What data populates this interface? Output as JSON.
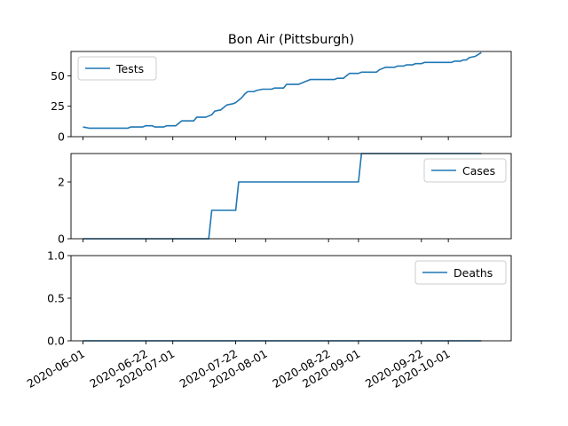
{
  "chart_data": {
    "type": "line",
    "title": "Bon Air (Pittsburgh)",
    "x_tick_labels": [
      "2020-06-01",
      "2020-06-22",
      "2020-07-01",
      "2020-07-22",
      "2020-08-01",
      "2020-08-22",
      "2020-09-01",
      "2020-09-22",
      "2020-10-01"
    ],
    "x_range": [
      "2020-05-28",
      "2020-10-22"
    ],
    "line_color": "#1f77b4",
    "panels": [
      {
        "legend": "Tests",
        "legend_position": "upper-left",
        "ylim": [
          0,
          70
        ],
        "y_ticks": [
          "0",
          "25",
          "50"
        ],
        "y_tick_values": [
          0,
          25,
          50
        ],
        "series": [
          [
            "2020-06-01",
            8
          ],
          [
            "2020-06-03",
            7
          ],
          [
            "2020-06-16",
            7
          ],
          [
            "2020-06-17",
            8
          ],
          [
            "2020-06-21",
            8
          ],
          [
            "2020-06-22",
            9
          ],
          [
            "2020-06-24",
            9
          ],
          [
            "2020-06-25",
            8
          ],
          [
            "2020-06-28",
            8
          ],
          [
            "2020-06-29",
            9
          ],
          [
            "2020-07-02",
            9
          ],
          [
            "2020-07-03",
            11
          ],
          [
            "2020-07-04",
            13
          ],
          [
            "2020-07-08",
            13
          ],
          [
            "2020-07-09",
            16
          ],
          [
            "2020-07-12",
            16
          ],
          [
            "2020-07-14",
            18
          ],
          [
            "2020-07-15",
            21
          ],
          [
            "2020-07-17",
            22
          ],
          [
            "2020-07-18",
            24
          ],
          [
            "2020-07-19",
            26
          ],
          [
            "2020-07-21",
            27
          ],
          [
            "2020-07-22",
            28
          ],
          [
            "2020-07-23",
            30
          ],
          [
            "2020-07-24",
            32
          ],
          [
            "2020-07-25",
            35
          ],
          [
            "2020-07-26",
            37
          ],
          [
            "2020-07-28",
            37
          ],
          [
            "2020-07-29",
            38
          ],
          [
            "2020-07-31",
            39
          ],
          [
            "2020-08-03",
            39
          ],
          [
            "2020-08-04",
            40
          ],
          [
            "2020-08-07",
            40
          ],
          [
            "2020-08-08",
            43
          ],
          [
            "2020-08-12",
            43
          ],
          [
            "2020-08-13",
            44
          ],
          [
            "2020-08-15",
            46
          ],
          [
            "2020-08-16",
            47
          ],
          [
            "2020-08-24",
            47
          ],
          [
            "2020-08-25",
            48
          ],
          [
            "2020-08-27",
            48
          ],
          [
            "2020-08-28",
            50
          ],
          [
            "2020-08-29",
            52
          ],
          [
            "2020-09-01",
            52
          ],
          [
            "2020-09-02",
            53
          ],
          [
            "2020-09-07",
            53
          ],
          [
            "2020-09-08",
            55
          ],
          [
            "2020-09-10",
            57
          ],
          [
            "2020-09-13",
            57
          ],
          [
            "2020-09-14",
            58
          ],
          [
            "2020-09-16",
            58
          ],
          [
            "2020-09-17",
            59
          ],
          [
            "2020-09-19",
            59
          ],
          [
            "2020-09-20",
            60
          ],
          [
            "2020-09-22",
            60
          ],
          [
            "2020-09-23",
            61
          ],
          [
            "2020-10-02",
            61
          ],
          [
            "2020-10-03",
            62
          ],
          [
            "2020-10-05",
            62
          ],
          [
            "2020-10-06",
            63
          ],
          [
            "2020-10-07",
            63
          ],
          [
            "2020-10-08",
            65
          ],
          [
            "2020-10-10",
            66
          ],
          [
            "2020-10-12",
            69
          ]
        ]
      },
      {
        "legend": "Cases",
        "legend_position": "upper-right",
        "ylim": [
          0,
          3
        ],
        "y_ticks": [
          "0",
          "2"
        ],
        "y_tick_values": [
          0,
          2
        ],
        "series": [
          [
            "2020-06-01",
            0
          ],
          [
            "2020-07-13",
            0
          ],
          [
            "2020-07-14",
            1
          ],
          [
            "2020-07-22",
            1
          ],
          [
            "2020-07-23",
            2
          ],
          [
            "2020-09-01",
            2
          ],
          [
            "2020-09-02",
            3
          ],
          [
            "2020-10-12",
            3
          ]
        ]
      },
      {
        "legend": "Deaths",
        "legend_position": "upper-right",
        "ylim": [
          0,
          1
        ],
        "y_ticks": [
          "0.0",
          "0.5",
          "1.0"
        ],
        "y_tick_values": [
          0,
          0.5,
          1.0
        ],
        "series": [
          [
            "2020-06-01",
            0
          ],
          [
            "2020-10-12",
            0
          ]
        ]
      }
    ]
  }
}
